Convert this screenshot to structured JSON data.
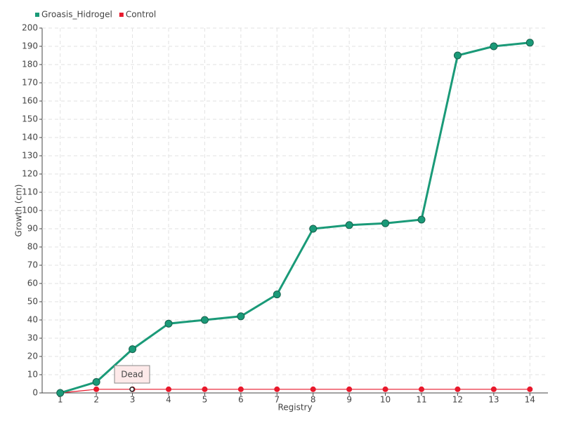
{
  "chart_data": {
    "type": "line",
    "x_label": "Registry",
    "y_label": "Growth (cm)",
    "categories": [
      "1",
      "2",
      "3",
      "4",
      "5",
      "6",
      "7",
      "8",
      "9",
      "10",
      "11",
      "12",
      "13",
      "14"
    ],
    "series": [
      {
        "name": "Groasis_Hidrogel",
        "color": "#1a9a78",
        "values": [
          0,
          6,
          24,
          38,
          40,
          42,
          54,
          90,
          92,
          93,
          95,
          185,
          190,
          192
        ]
      },
      {
        "name": "Control",
        "color": "#e8192c",
        "values": [
          0,
          2,
          2,
          2,
          2,
          2,
          2,
          2,
          2,
          2,
          2,
          2,
          2,
          2
        ]
      }
    ],
    "annotation": "Dead",
    "ylim": [
      0,
      200
    ],
    "yticks": [
      0,
      10,
      20,
      30,
      40,
      50,
      60,
      70,
      80,
      90,
      100,
      110,
      120,
      130,
      140,
      150,
      160,
      170,
      180,
      190,
      200
    ],
    "grid": true
  }
}
